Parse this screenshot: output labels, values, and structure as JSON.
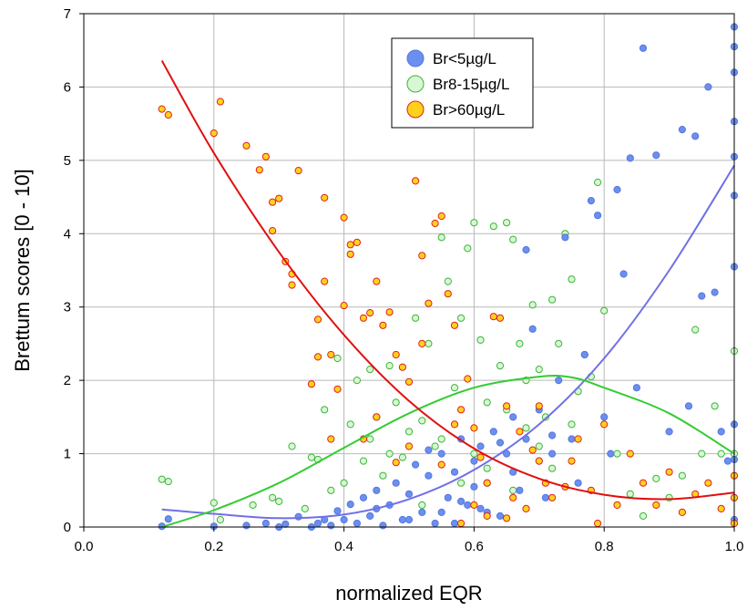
{
  "chart_data": {
    "type": "scatter",
    "title": "",
    "xlabel": "normalized EQR",
    "ylabel": "Brettum scores [0 - 10]",
    "xlim": [
      0.0,
      1.0
    ],
    "ylim": [
      0,
      7
    ],
    "xticks": [
      "0.0",
      "0.2",
      "0.4",
      "0.6",
      "0.8",
      "1.0"
    ],
    "yticks": [
      "0",
      "1",
      "2",
      "3",
      "4",
      "5",
      "6",
      "7"
    ],
    "grid": true,
    "legend_position": "top-center",
    "series": [
      {
        "name": "Br<5µg/L",
        "color": "#5b82e8",
        "marker_fill": "#6b8ff0",
        "marker_edge": "#5577dd",
        "curve_color": "#6f6fe8",
        "points": [
          [
            0.12,
            0.01
          ],
          [
            0.13,
            0.11
          ],
          [
            0.2,
            0.01
          ],
          [
            0.25,
            0.02
          ],
          [
            0.28,
            0.05
          ],
          [
            0.3,
            0.0
          ],
          [
            0.31,
            0.04
          ],
          [
            0.33,
            0.14
          ],
          [
            0.35,
            0.0
          ],
          [
            0.36,
            0.05
          ],
          [
            0.37,
            0.1
          ],
          [
            0.38,
            0.02
          ],
          [
            0.39,
            0.22
          ],
          [
            0.4,
            0.1
          ],
          [
            0.41,
            0.31
          ],
          [
            0.42,
            0.05
          ],
          [
            0.43,
            0.4
          ],
          [
            0.44,
            0.15
          ],
          [
            0.45,
            0.5
          ],
          [
            0.46,
            0.02
          ],
          [
            0.47,
            0.3
          ],
          [
            0.48,
            0.6
          ],
          [
            0.49,
            0.1
          ],
          [
            0.5,
            0.45
          ],
          [
            0.51,
            0.85
          ],
          [
            0.52,
            0.2
          ],
          [
            0.53,
            0.7
          ],
          [
            0.54,
            0.05
          ],
          [
            0.55,
            1.0
          ],
          [
            0.56,
            0.4
          ],
          [
            0.57,
            0.75
          ],
          [
            0.58,
            1.2
          ],
          [
            0.59,
            0.3
          ],
          [
            0.6,
            0.9
          ],
          [
            0.61,
            1.1
          ],
          [
            0.62,
            0.6
          ],
          [
            0.63,
            1.3
          ],
          [
            0.64,
            0.15
          ],
          [
            0.65,
            1.0
          ],
          [
            0.66,
            1.5
          ],
          [
            0.67,
            0.5
          ],
          [
            0.68,
            1.2
          ],
          [
            0.69,
            2.7
          ],
          [
            0.7,
            1.6
          ],
          [
            0.71,
            0.4
          ],
          [
            0.72,
            1.0
          ],
          [
            0.73,
            2.0
          ],
          [
            0.74,
            3.95
          ],
          [
            0.75,
            1.2
          ],
          [
            0.76,
            0.6
          ],
          [
            0.77,
            2.35
          ],
          [
            0.78,
            4.45
          ],
          [
            0.79,
            4.25
          ],
          [
            0.8,
            1.5
          ],
          [
            0.81,
            1.0
          ],
          [
            0.82,
            4.6
          ],
          [
            0.83,
            3.45
          ],
          [
            0.84,
            5.03
          ],
          [
            0.85,
            1.9
          ],
          [
            0.86,
            6.53
          ],
          [
            0.88,
            5.07
          ],
          [
            0.9,
            1.3
          ],
          [
            0.92,
            5.42
          ],
          [
            0.93,
            1.65
          ],
          [
            0.94,
            5.33
          ],
          [
            0.95,
            3.15
          ],
          [
            0.96,
            6.0
          ],
          [
            0.97,
            3.2
          ],
          [
            0.98,
            1.3
          ],
          [
            0.99,
            0.9
          ],
          [
            1.0,
            6.82
          ],
          [
            1.0,
            6.55
          ],
          [
            1.0,
            6.2
          ],
          [
            1.0,
            5.53
          ],
          [
            1.0,
            5.05
          ],
          [
            1.0,
            4.52
          ],
          [
            1.0,
            3.55
          ],
          [
            1.0,
            1.4
          ],
          [
            1.0,
            0.92
          ],
          [
            1.0,
            0.1
          ],
          [
            0.6,
            0.55
          ],
          [
            0.58,
            0.35
          ],
          [
            0.62,
            0.2
          ],
          [
            0.66,
            0.75
          ],
          [
            0.55,
            0.2
          ],
          [
            0.5,
            0.1
          ],
          [
            0.45,
            0.25
          ],
          [
            0.68,
            3.78
          ],
          [
            0.72,
            1.25
          ],
          [
            0.64,
            1.15
          ],
          [
            0.53,
            1.05
          ],
          [
            0.57,
            0.05
          ],
          [
            0.61,
            0.25
          ],
          [
            0.7,
            0.9
          ]
        ],
        "fit": [
          [
            0.12,
            0.24
          ],
          [
            0.2,
            0.18
          ],
          [
            0.3,
            0.12
          ],
          [
            0.4,
            0.17
          ],
          [
            0.5,
            0.38
          ],
          [
            0.6,
            0.78
          ],
          [
            0.7,
            1.4
          ],
          [
            0.8,
            2.3
          ],
          [
            0.9,
            3.5
          ],
          [
            1.0,
            4.93
          ]
        ]
      },
      {
        "name": "Br8-15µg/L",
        "color": "#c8f5c8",
        "marker_fill": "#d9f7d2",
        "marker_edge": "#3cb43c",
        "curve_color": "#33cc33",
        "points": [
          [
            0.12,
            0.65
          ],
          [
            0.13,
            0.62
          ],
          [
            0.2,
            0.33
          ],
          [
            0.21,
            0.1
          ],
          [
            0.26,
            0.3
          ],
          [
            0.29,
            0.4
          ],
          [
            0.3,
            0.35
          ],
          [
            0.32,
            1.1
          ],
          [
            0.34,
            0.25
          ],
          [
            0.35,
            0.95
          ],
          [
            0.36,
            0.92
          ],
          [
            0.37,
            1.6
          ],
          [
            0.38,
            0.5
          ],
          [
            0.39,
            2.3
          ],
          [
            0.4,
            0.6
          ],
          [
            0.41,
            1.4
          ],
          [
            0.42,
            2.0
          ],
          [
            0.43,
            0.9
          ],
          [
            0.44,
            1.2
          ],
          [
            0.45,
            1.5
          ],
          [
            0.46,
            0.7
          ],
          [
            0.47,
            2.2
          ],
          [
            0.48,
            1.7
          ],
          [
            0.49,
            0.95
          ],
          [
            0.5,
            1.3
          ],
          [
            0.51,
            2.85
          ],
          [
            0.52,
            1.45
          ],
          [
            0.53,
            2.5
          ],
          [
            0.54,
            1.1
          ],
          [
            0.55,
            3.95
          ],
          [
            0.56,
            3.35
          ],
          [
            0.57,
            1.9
          ],
          [
            0.58,
            2.85
          ],
          [
            0.59,
            3.8
          ],
          [
            0.6,
            4.15
          ],
          [
            0.61,
            2.55
          ],
          [
            0.62,
            1.7
          ],
          [
            0.63,
            4.1
          ],
          [
            0.64,
            2.2
          ],
          [
            0.65,
            4.15
          ],
          [
            0.66,
            3.92
          ],
          [
            0.67,
            2.5
          ],
          [
            0.68,
            1.35
          ],
          [
            0.69,
            3.03
          ],
          [
            0.7,
            2.15
          ],
          [
            0.71,
            1.5
          ],
          [
            0.72,
            3.1
          ],
          [
            0.73,
            2.5
          ],
          [
            0.74,
            4.0
          ],
          [
            0.75,
            3.38
          ],
          [
            0.76,
            1.85
          ],
          [
            0.77,
            2.35
          ],
          [
            0.78,
            2.05
          ],
          [
            0.79,
            4.7
          ],
          [
            0.8,
            2.95
          ],
          [
            0.82,
            1.0
          ],
          [
            0.84,
            0.45
          ],
          [
            0.86,
            0.15
          ],
          [
            0.88,
            0.66
          ],
          [
            0.9,
            0.4
          ],
          [
            0.92,
            0.7
          ],
          [
            0.94,
            2.69
          ],
          [
            0.95,
            1.0
          ],
          [
            0.97,
            1.65
          ],
          [
            0.98,
            1.0
          ],
          [
            1.0,
            2.4
          ],
          [
            1.0,
            1.0
          ],
          [
            0.6,
            1.0
          ],
          [
            0.62,
            0.8
          ],
          [
            0.55,
            1.2
          ],
          [
            0.65,
            1.6
          ],
          [
            0.7,
            1.1
          ],
          [
            0.58,
            0.6
          ],
          [
            0.52,
            0.3
          ],
          [
            0.47,
            1.0
          ],
          [
            0.44,
            2.15
          ],
          [
            0.66,
            0.5
          ],
          [
            0.68,
            2.0
          ],
          [
            0.72,
            0.8
          ],
          [
            0.75,
            1.4
          ]
        ],
        "fit": [
          [
            0.12,
            0.0
          ],
          [
            0.2,
            0.23
          ],
          [
            0.3,
            0.6
          ],
          [
            0.4,
            1.08
          ],
          [
            0.5,
            1.55
          ],
          [
            0.6,
            1.9
          ],
          [
            0.7,
            2.05
          ],
          [
            0.75,
            2.04
          ],
          [
            0.8,
            1.9
          ],
          [
            0.9,
            1.55
          ],
          [
            1.0,
            1.0
          ]
        ]
      },
      {
        "name": "Br>60µg/L",
        "color": "#ffd700",
        "marker_fill": "#ffd21a",
        "marker_edge": "#e02020",
        "curve_color": "#e01010",
        "points": [
          [
            0.12,
            5.7
          ],
          [
            0.13,
            5.62
          ],
          [
            0.2,
            5.37
          ],
          [
            0.21,
            5.8
          ],
          [
            0.25,
            5.2
          ],
          [
            0.27,
            4.87
          ],
          [
            0.28,
            5.05
          ],
          [
            0.29,
            4.43
          ],
          [
            0.29,
            4.04
          ],
          [
            0.3,
            4.48
          ],
          [
            0.31,
            3.62
          ],
          [
            0.32,
            3.45
          ],
          [
            0.32,
            3.3
          ],
          [
            0.33,
            4.86
          ],
          [
            0.35,
            1.95
          ],
          [
            0.36,
            2.32
          ],
          [
            0.36,
            2.83
          ],
          [
            0.37,
            3.35
          ],
          [
            0.37,
            4.49
          ],
          [
            0.38,
            2.35
          ],
          [
            0.38,
            1.2
          ],
          [
            0.39,
            1.88
          ],
          [
            0.4,
            3.02
          ],
          [
            0.4,
            4.22
          ],
          [
            0.41,
            3.85
          ],
          [
            0.41,
            3.72
          ],
          [
            0.42,
            3.88
          ],
          [
            0.43,
            2.85
          ],
          [
            0.44,
            2.92
          ],
          [
            0.45,
            3.35
          ],
          [
            0.46,
            2.75
          ],
          [
            0.47,
            2.93
          ],
          [
            0.48,
            2.35
          ],
          [
            0.49,
            2.18
          ],
          [
            0.5,
            1.98
          ],
          [
            0.51,
            4.72
          ],
          [
            0.52,
            3.7
          ],
          [
            0.53,
            3.05
          ],
          [
            0.54,
            4.14
          ],
          [
            0.55,
            4.24
          ],
          [
            0.56,
            3.18
          ],
          [
            0.57,
            2.75
          ],
          [
            0.58,
            1.6
          ],
          [
            0.59,
            2.02
          ],
          [
            0.6,
            1.35
          ],
          [
            0.61,
            0.95
          ],
          [
            0.62,
            0.6
          ],
          [
            0.63,
            2.87
          ],
          [
            0.64,
            2.85
          ],
          [
            0.65,
            1.65
          ],
          [
            0.66,
            0.4
          ],
          [
            0.67,
            1.3
          ],
          [
            0.68,
            0.25
          ],
          [
            0.69,
            1.05
          ],
          [
            0.7,
            0.9
          ],
          [
            0.71,
            0.6
          ],
          [
            0.72,
            0.4
          ],
          [
            0.74,
            0.55
          ],
          [
            0.75,
            0.9
          ],
          [
            0.76,
            1.2
          ],
          [
            0.78,
            0.5
          ],
          [
            0.79,
            0.05
          ],
          [
            0.8,
            1.4
          ],
          [
            0.82,
            0.3
          ],
          [
            0.84,
            1.0
          ],
          [
            0.86,
            0.6
          ],
          [
            0.88,
            0.3
          ],
          [
            0.9,
            0.75
          ],
          [
            0.92,
            0.2
          ],
          [
            0.94,
            0.45
          ],
          [
            0.96,
            0.6
          ],
          [
            0.98,
            0.25
          ],
          [
            1.0,
            0.7
          ],
          [
            1.0,
            0.4
          ],
          [
            1.0,
            0.05
          ],
          [
            0.45,
            1.5
          ],
          [
            0.5,
            1.1
          ],
          [
            0.55,
            0.85
          ],
          [
            0.6,
            0.3
          ],
          [
            0.65,
            0.12
          ],
          [
            0.7,
            1.65
          ],
          [
            0.52,
            2.5
          ],
          [
            0.57,
            1.4
          ],
          [
            0.62,
            0.15
          ],
          [
            0.58,
            0.05
          ],
          [
            0.48,
            0.88
          ],
          [
            0.43,
            1.2
          ]
        ],
        "fit": [
          [
            0.12,
            6.36
          ],
          [
            0.2,
            5.1
          ],
          [
            0.3,
            3.75
          ],
          [
            0.4,
            2.62
          ],
          [
            0.5,
            1.72
          ],
          [
            0.6,
            1.07
          ],
          [
            0.7,
            0.66
          ],
          [
            0.8,
            0.44
          ],
          [
            0.9,
            0.38
          ],
          [
            1.0,
            0.47
          ]
        ]
      }
    ]
  }
}
